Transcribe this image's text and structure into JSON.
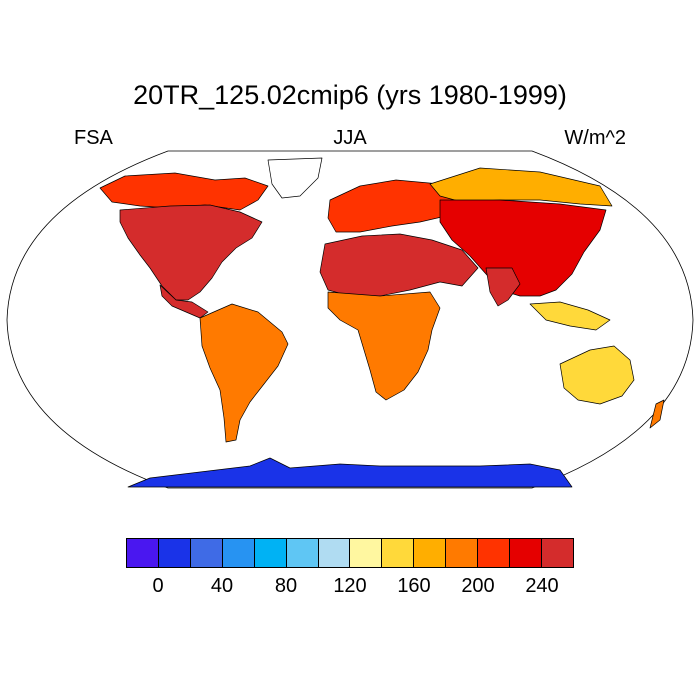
{
  "header": {
    "title": "20TR_125.02cmip6 (yrs 1980-1999)",
    "left_label": "FSA",
    "center_label": "JJA",
    "right_label": "W/m^2"
  },
  "colorbar": {
    "colors": [
      "#4a17f0",
      "#1a33e8",
      "#3f6be6",
      "#2793f2",
      "#00b2f4",
      "#5fc6f4",
      "#b0dcf2",
      "#fff7a0",
      "#ffd93a",
      "#ffae00",
      "#ff7a00",
      "#ff3300",
      "#e50000",
      "#d42c2c"
    ],
    "tick_labels": [
      "0",
      "40",
      "80",
      "120",
      "160",
      "200",
      "240"
    ],
    "tick_boundaries": [
      1,
      3,
      5,
      7,
      9,
      11,
      13
    ]
  },
  "map": {
    "projection": "Robinson",
    "ocean_color": "#ffffff",
    "coastline_color": "#000000",
    "regions": [
      {
        "name": "North America",
        "color": "#d42c2c"
      },
      {
        "name": "Alaska / Canada",
        "color": "#ff3300"
      },
      {
        "name": "Greenland",
        "color": "#ffffff"
      },
      {
        "name": "South America",
        "color": "#ff7a00"
      },
      {
        "name": "Europe",
        "color": "#ff3300"
      },
      {
        "name": "Sahara / Middle East",
        "color": "#d42c2c"
      },
      {
        "name": "Africa",
        "color": "#ff7a00"
      },
      {
        "name": "Asia",
        "color": "#e50000"
      },
      {
        "name": "Siberia",
        "color": "#ffae00"
      },
      {
        "name": "Australia",
        "color": "#ffd93a"
      },
      {
        "name": "Antarctica",
        "color": "#1a33e8"
      }
    ]
  }
}
